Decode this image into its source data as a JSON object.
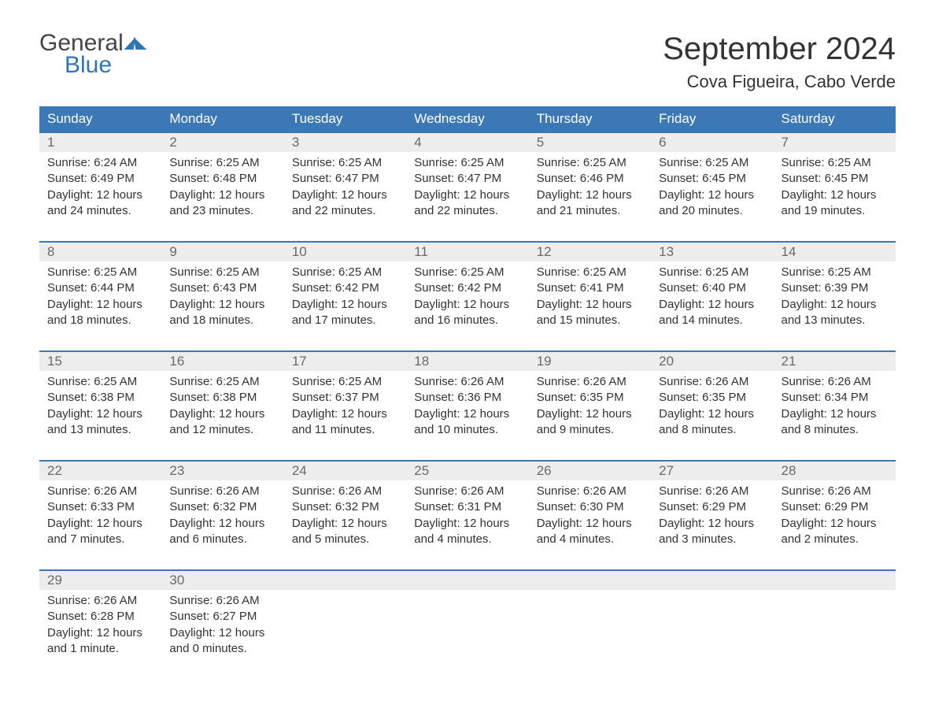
{
  "logo": {
    "text1": "General",
    "text2": "Blue"
  },
  "title": "September 2024",
  "location": "Cova Figueira, Cabo Verde",
  "colors": {
    "header_bg": "#3b78b5",
    "header_text": "#ffffff",
    "daynum_bg": "#ededed",
    "daynum_text": "#6a6a6a",
    "body_text": "#333333",
    "accent": "#2e75b6",
    "background": "#ffffff"
  },
  "days_of_week": [
    "Sunday",
    "Monday",
    "Tuesday",
    "Wednesday",
    "Thursday",
    "Friday",
    "Saturday"
  ],
  "weeks": [
    [
      {
        "day": "1",
        "sunrise": "Sunrise: 6:24 AM",
        "sunset": "Sunset: 6:49 PM",
        "daylight": "Daylight: 12 hours and 24 minutes."
      },
      {
        "day": "2",
        "sunrise": "Sunrise: 6:25 AM",
        "sunset": "Sunset: 6:48 PM",
        "daylight": "Daylight: 12 hours and 23 minutes."
      },
      {
        "day": "3",
        "sunrise": "Sunrise: 6:25 AM",
        "sunset": "Sunset: 6:47 PM",
        "daylight": "Daylight: 12 hours and 22 minutes."
      },
      {
        "day": "4",
        "sunrise": "Sunrise: 6:25 AM",
        "sunset": "Sunset: 6:47 PM",
        "daylight": "Daylight: 12 hours and 22 minutes."
      },
      {
        "day": "5",
        "sunrise": "Sunrise: 6:25 AM",
        "sunset": "Sunset: 6:46 PM",
        "daylight": "Daylight: 12 hours and 21 minutes."
      },
      {
        "day": "6",
        "sunrise": "Sunrise: 6:25 AM",
        "sunset": "Sunset: 6:45 PM",
        "daylight": "Daylight: 12 hours and 20 minutes."
      },
      {
        "day": "7",
        "sunrise": "Sunrise: 6:25 AM",
        "sunset": "Sunset: 6:45 PM",
        "daylight": "Daylight: 12 hours and 19 minutes."
      }
    ],
    [
      {
        "day": "8",
        "sunrise": "Sunrise: 6:25 AM",
        "sunset": "Sunset: 6:44 PM",
        "daylight": "Daylight: 12 hours and 18 minutes."
      },
      {
        "day": "9",
        "sunrise": "Sunrise: 6:25 AM",
        "sunset": "Sunset: 6:43 PM",
        "daylight": "Daylight: 12 hours and 18 minutes."
      },
      {
        "day": "10",
        "sunrise": "Sunrise: 6:25 AM",
        "sunset": "Sunset: 6:42 PM",
        "daylight": "Daylight: 12 hours and 17 minutes."
      },
      {
        "day": "11",
        "sunrise": "Sunrise: 6:25 AM",
        "sunset": "Sunset: 6:42 PM",
        "daylight": "Daylight: 12 hours and 16 minutes."
      },
      {
        "day": "12",
        "sunrise": "Sunrise: 6:25 AM",
        "sunset": "Sunset: 6:41 PM",
        "daylight": "Daylight: 12 hours and 15 minutes."
      },
      {
        "day": "13",
        "sunrise": "Sunrise: 6:25 AM",
        "sunset": "Sunset: 6:40 PM",
        "daylight": "Daylight: 12 hours and 14 minutes."
      },
      {
        "day": "14",
        "sunrise": "Sunrise: 6:25 AM",
        "sunset": "Sunset: 6:39 PM",
        "daylight": "Daylight: 12 hours and 13 minutes."
      }
    ],
    [
      {
        "day": "15",
        "sunrise": "Sunrise: 6:25 AM",
        "sunset": "Sunset: 6:38 PM",
        "daylight": "Daylight: 12 hours and 13 minutes."
      },
      {
        "day": "16",
        "sunrise": "Sunrise: 6:25 AM",
        "sunset": "Sunset: 6:38 PM",
        "daylight": "Daylight: 12 hours and 12 minutes."
      },
      {
        "day": "17",
        "sunrise": "Sunrise: 6:25 AM",
        "sunset": "Sunset: 6:37 PM",
        "daylight": "Daylight: 12 hours and 11 minutes."
      },
      {
        "day": "18",
        "sunrise": "Sunrise: 6:26 AM",
        "sunset": "Sunset: 6:36 PM",
        "daylight": "Daylight: 12 hours and 10 minutes."
      },
      {
        "day": "19",
        "sunrise": "Sunrise: 6:26 AM",
        "sunset": "Sunset: 6:35 PM",
        "daylight": "Daylight: 12 hours and 9 minutes."
      },
      {
        "day": "20",
        "sunrise": "Sunrise: 6:26 AM",
        "sunset": "Sunset: 6:35 PM",
        "daylight": "Daylight: 12 hours and 8 minutes."
      },
      {
        "day": "21",
        "sunrise": "Sunrise: 6:26 AM",
        "sunset": "Sunset: 6:34 PM",
        "daylight": "Daylight: 12 hours and 8 minutes."
      }
    ],
    [
      {
        "day": "22",
        "sunrise": "Sunrise: 6:26 AM",
        "sunset": "Sunset: 6:33 PM",
        "daylight": "Daylight: 12 hours and 7 minutes."
      },
      {
        "day": "23",
        "sunrise": "Sunrise: 6:26 AM",
        "sunset": "Sunset: 6:32 PM",
        "daylight": "Daylight: 12 hours and 6 minutes."
      },
      {
        "day": "24",
        "sunrise": "Sunrise: 6:26 AM",
        "sunset": "Sunset: 6:32 PM",
        "daylight": "Daylight: 12 hours and 5 minutes."
      },
      {
        "day": "25",
        "sunrise": "Sunrise: 6:26 AM",
        "sunset": "Sunset: 6:31 PM",
        "daylight": "Daylight: 12 hours and 4 minutes."
      },
      {
        "day": "26",
        "sunrise": "Sunrise: 6:26 AM",
        "sunset": "Sunset: 6:30 PM",
        "daylight": "Daylight: 12 hours and 4 minutes."
      },
      {
        "day": "27",
        "sunrise": "Sunrise: 6:26 AM",
        "sunset": "Sunset: 6:29 PM",
        "daylight": "Daylight: 12 hours and 3 minutes."
      },
      {
        "day": "28",
        "sunrise": "Sunrise: 6:26 AM",
        "sunset": "Sunset: 6:29 PM",
        "daylight": "Daylight: 12 hours and 2 minutes."
      }
    ],
    [
      {
        "day": "29",
        "sunrise": "Sunrise: 6:26 AM",
        "sunset": "Sunset: 6:28 PM",
        "daylight": "Daylight: 12 hours and 1 minute."
      },
      {
        "day": "30",
        "sunrise": "Sunrise: 6:26 AM",
        "sunset": "Sunset: 6:27 PM",
        "daylight": "Daylight: 12 hours and 0 minutes."
      },
      null,
      null,
      null,
      null,
      null
    ]
  ]
}
